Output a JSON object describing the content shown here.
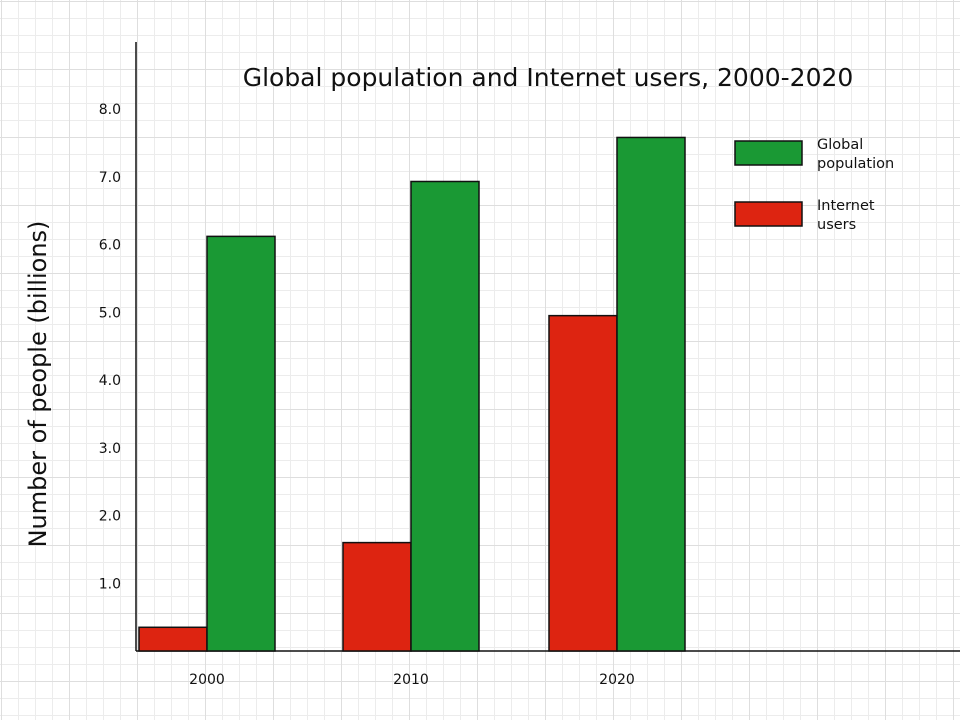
{
  "chart_data": {
    "type": "bar",
    "title": "Global population and Internet users, 2000-2020",
    "xlabel": "",
    "ylabel": "Number of people (billions)",
    "categories": [
      "2000",
      "2010",
      "2020"
    ],
    "series": [
      {
        "name": "Internet users",
        "color": "#dd2411",
        "values": [
          0.35,
          1.6,
          4.95
        ]
      },
      {
        "name": "Global population",
        "color": "#1a9934",
        "values": [
          6.12,
          6.93,
          7.58
        ]
      }
    ],
    "ylim": [
      0,
      8.5
    ],
    "yticks": [
      "1.0",
      "2.0",
      "3.0",
      "4.0",
      "5.0",
      "6.0",
      "7.0",
      "8.0"
    ],
    "grid": true,
    "legend": {
      "position": "top-right",
      "entries": [
        {
          "series": "Global population",
          "lines": [
            "Global",
            "population"
          ]
        },
        {
          "series": "Internet users",
          "lines": [
            "Internet",
            "users"
          ]
        }
      ]
    }
  }
}
